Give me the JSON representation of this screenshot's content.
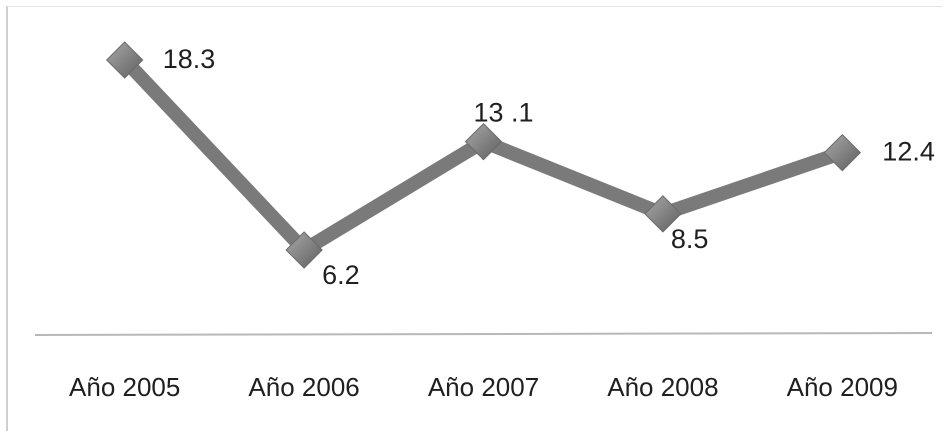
{
  "chart_data": {
    "type": "line",
    "title": "",
    "xlabel": "",
    "ylabel": "",
    "categories": [
      "Año 2005",
      "Año 2006",
      "Año 2007",
      "Año 2008",
      "Año 2009"
    ],
    "series": [
      {
        "values": [
          18.3,
          6.2,
          13.1,
          8.5,
          12.4
        ],
        "data_labels": [
          "18.3",
          "6.2",
          "13 .1",
          "8.5",
          "12.4"
        ],
        "color": "#7a7a7a",
        "marker": "diamond"
      }
    ],
    "ylim": [
      0,
      20
    ],
    "grid": false,
    "legend": "none"
  }
}
